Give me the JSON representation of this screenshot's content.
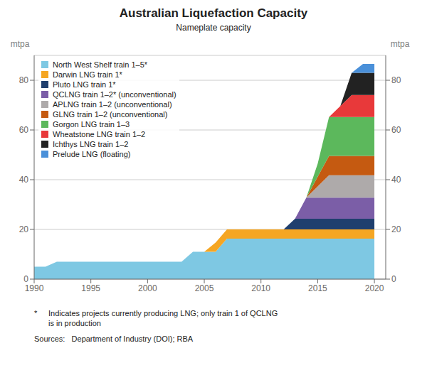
{
  "chart_data": {
    "type": "area",
    "stacked": true,
    "title": "Australian Liquefaction Capacity",
    "subtitle": "Nameplate capacity",
    "ylabel": "mtpa",
    "y2label": "mtpa",
    "annotations": [
      "*",
      "Indicates projects currently producing LNG; only train 1 of QCLNG\nis in production",
      "Sources:   Department of Industry (DOI); RBA"
    ],
    "x": [
      1990,
      1991,
      1992,
      1993,
      1994,
      1995,
      1996,
      1997,
      1998,
      1999,
      2000,
      2001,
      2002,
      2003,
      2004,
      2005,
      2006,
      2007,
      2008,
      2009,
      2010,
      2011,
      2012,
      2013,
      2014,
      2015,
      2016,
      2017,
      2018,
      2019,
      2020
    ],
    "xlim": [
      1990,
      2021
    ],
    "xticks": [
      1990,
      1995,
      2000,
      2005,
      2010,
      2015,
      2020
    ],
    "ylim": [
      0,
      90
    ],
    "yticks": [
      0,
      20,
      40,
      60,
      80
    ],
    "y2lim": [
      0,
      90
    ],
    "y2ticks": [
      0,
      20,
      40,
      60,
      80
    ],
    "grid": true,
    "legend": "upper left",
    "series": [
      {
        "name": "North West Shelf train 1–5*",
        "color": "#7EC8E3",
        "values": [
          5.0,
          5.0,
          7.0,
          7.0,
          7.0,
          7.0,
          7.0,
          7.0,
          7.0,
          7.0,
          7.0,
          7.0,
          7.0,
          7.0,
          11.0,
          11.0,
          11.0,
          16.3,
          16.3,
          16.3,
          16.3,
          16.3,
          16.3,
          16.3,
          16.3,
          16.3,
          16.3,
          16.3,
          16.3,
          16.3,
          16.3
        ]
      },
      {
        "name": "Darwin LNG train 1*",
        "color": "#F5A623",
        "values": [
          0,
          0,
          0,
          0,
          0,
          0,
          0,
          0,
          0,
          0,
          0,
          0,
          0,
          0,
          0,
          0,
          3.7,
          3.7,
          3.7,
          3.7,
          3.7,
          3.7,
          3.7,
          3.7,
          3.7,
          3.7,
          3.7,
          3.7,
          3.7,
          3.7,
          3.7
        ]
      },
      {
        "name": "Pluto LNG train 1*",
        "color": "#1F3F6E",
        "values": [
          0,
          0,
          0,
          0,
          0,
          0,
          0,
          0,
          0,
          0,
          0,
          0,
          0,
          0,
          0,
          0,
          0,
          0,
          0,
          0,
          0,
          0,
          0,
          4.3,
          4.3,
          4.3,
          4.3,
          4.3,
          4.3,
          4.3,
          4.3
        ]
      },
      {
        "name": "QCLNG train 1–2* (unconventional)",
        "color": "#7B5EA7",
        "values": [
          0,
          0,
          0,
          0,
          0,
          0,
          0,
          0,
          0,
          0,
          0,
          0,
          0,
          0,
          0,
          0,
          0,
          0,
          0,
          0,
          0,
          0,
          0,
          0,
          8.5,
          8.5,
          8.5,
          8.5,
          8.5,
          8.5,
          8.5
        ]
      },
      {
        "name": "APLNG train 1–2 (unconventional)",
        "color": "#AEAAAA",
        "values": [
          0,
          0,
          0,
          0,
          0,
          0,
          0,
          0,
          0,
          0,
          0,
          0,
          0,
          0,
          0,
          0,
          0,
          0,
          0,
          0,
          0,
          0,
          0,
          0,
          0,
          4.5,
          9.0,
          9.0,
          9.0,
          9.0,
          9.0
        ]
      },
      {
        "name": "GLNG train 1–2 (unconventional)",
        "color": "#C55A11",
        "values": [
          0,
          0,
          0,
          0,
          0,
          0,
          0,
          0,
          0,
          0,
          0,
          0,
          0,
          0,
          0,
          0,
          0,
          0,
          0,
          0,
          0,
          0,
          0,
          0,
          0,
          3.9,
          7.8,
          7.8,
          7.8,
          7.8,
          7.8
        ]
      },
      {
        "name": "Gorgon LNG train 1–3",
        "color": "#5CB85C",
        "values": [
          0,
          0,
          0,
          0,
          0,
          0,
          0,
          0,
          0,
          0,
          0,
          0,
          0,
          0,
          0,
          0,
          0,
          0,
          0,
          0,
          0,
          0,
          0,
          0,
          0,
          5.2,
          15.6,
          15.6,
          15.6,
          15.6,
          15.6
        ]
      },
      {
        "name": "Wheatstone LNG train 1–2",
        "color": "#E8393A",
        "values": [
          0,
          0,
          0,
          0,
          0,
          0,
          0,
          0,
          0,
          0,
          0,
          0,
          0,
          0,
          0,
          0,
          0,
          0,
          0,
          0,
          0,
          0,
          0,
          0,
          0,
          0,
          0,
          4.45,
          8.9,
          8.9,
          8.9
        ]
      },
      {
        "name": "Ichthys LNG train 1–2",
        "color": "#222222",
        "values": [
          0,
          0,
          0,
          0,
          0,
          0,
          0,
          0,
          0,
          0,
          0,
          0,
          0,
          0,
          0,
          0,
          0,
          0,
          0,
          0,
          0,
          0,
          0,
          0,
          0,
          0,
          0,
          0,
          8.9,
          8.9,
          8.9
        ]
      },
      {
        "name": "Prelude LNG (floating)",
        "color": "#4A90D9",
        "values": [
          0,
          0,
          0,
          0,
          0,
          0,
          0,
          0,
          0,
          0,
          0,
          0,
          0,
          0,
          0,
          0,
          0,
          0,
          0,
          0,
          0,
          0,
          0,
          0,
          0,
          0,
          0,
          0,
          0,
          3.6,
          3.6
        ]
      }
    ]
  }
}
